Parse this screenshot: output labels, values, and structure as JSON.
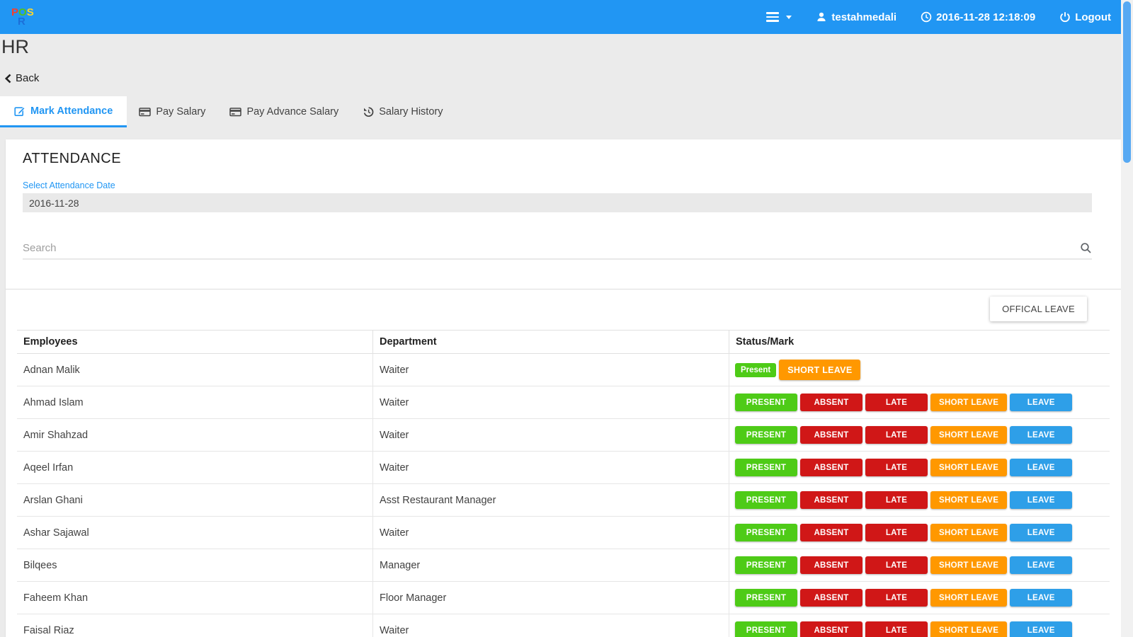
{
  "navbar": {
    "logo": {
      "line1": [
        {
          "ch": "P",
          "color": "#f4402e"
        },
        {
          "ch": "O",
          "color": "#54c21e"
        },
        {
          "ch": "S",
          "color": "#fdd72c"
        }
      ],
      "line2": [
        {
          "ch": "R",
          "color": "#1c6fd9"
        }
      ]
    },
    "user": "testahmedali",
    "datetime": "2016-11-28 12:18:09",
    "logout_label": "Logout"
  },
  "page": {
    "title": "HR",
    "back_label": "Back"
  },
  "tabs": [
    {
      "label": "Mark Attendance",
      "icon": "edit-icon",
      "active": true
    },
    {
      "label": "Pay Salary",
      "icon": "credit-card-icon",
      "active": false
    },
    {
      "label": "Pay Advance Salary",
      "icon": "credit-card-icon",
      "active": false
    },
    {
      "label": "Salary History",
      "icon": "history-icon",
      "active": false
    }
  ],
  "attendance": {
    "heading": "ATTENDANCE",
    "date_label": "Select Attendance Date",
    "date_value": "2016-11-28",
    "search_placeholder": "Search"
  },
  "official_leave_label": "OFFICAL LEAVE",
  "table": {
    "columns": [
      "Employees",
      "Department",
      "Status/Mark"
    ],
    "rows": [
      {
        "name": "Adnan Malik",
        "department": "Waiter",
        "badge": {
          "label": "Present",
          "color": "#4ecb17"
        },
        "buttons": [
          {
            "label": "SHORT LEAVE",
            "color": "#ff9800"
          }
        ]
      },
      {
        "name": "Ahmad Islam",
        "department": "Waiter",
        "buttons": [
          {
            "label": "PRESENT",
            "color": "#4ecb17"
          },
          {
            "label": "ABSENT",
            "color": "#d01717"
          },
          {
            "label": "LATE",
            "color": "#d01717"
          },
          {
            "label": "SHORT LEAVE",
            "color": "#ff9800"
          },
          {
            "label": "LEAVE",
            "color": "#2e9fe8"
          }
        ]
      },
      {
        "name": "Amir Shahzad",
        "department": "Waiter",
        "buttons": [
          {
            "label": "PRESENT",
            "color": "#4ecb17"
          },
          {
            "label": "ABSENT",
            "color": "#d01717"
          },
          {
            "label": "LATE",
            "color": "#d01717"
          },
          {
            "label": "SHORT LEAVE",
            "color": "#ff9800"
          },
          {
            "label": "LEAVE",
            "color": "#2e9fe8"
          }
        ]
      },
      {
        "name": "Aqeel Irfan",
        "department": "Waiter",
        "buttons": [
          {
            "label": "PRESENT",
            "color": "#4ecb17"
          },
          {
            "label": "ABSENT",
            "color": "#d01717"
          },
          {
            "label": "LATE",
            "color": "#d01717"
          },
          {
            "label": "SHORT LEAVE",
            "color": "#ff9800"
          },
          {
            "label": "LEAVE",
            "color": "#2e9fe8"
          }
        ]
      },
      {
        "name": "Arslan Ghani",
        "department": "Asst Restaurant Manager",
        "buttons": [
          {
            "label": "PRESENT",
            "color": "#4ecb17"
          },
          {
            "label": "ABSENT",
            "color": "#d01717"
          },
          {
            "label": "LATE",
            "color": "#d01717"
          },
          {
            "label": "SHORT LEAVE",
            "color": "#ff9800"
          },
          {
            "label": "LEAVE",
            "color": "#2e9fe8"
          }
        ]
      },
      {
        "name": "Ashar Sajawal",
        "department": "Waiter",
        "buttons": [
          {
            "label": "PRESENT",
            "color": "#4ecb17"
          },
          {
            "label": "ABSENT",
            "color": "#d01717"
          },
          {
            "label": "LATE",
            "color": "#d01717"
          },
          {
            "label": "SHORT LEAVE",
            "color": "#ff9800"
          },
          {
            "label": "LEAVE",
            "color": "#2e9fe8"
          }
        ]
      },
      {
        "name": "Bilqees",
        "department": "Manager",
        "buttons": [
          {
            "label": "PRESENT",
            "color": "#4ecb17"
          },
          {
            "label": "ABSENT",
            "color": "#d01717"
          },
          {
            "label": "LATE",
            "color": "#d01717"
          },
          {
            "label": "SHORT LEAVE",
            "color": "#ff9800"
          },
          {
            "label": "LEAVE",
            "color": "#2e9fe8"
          }
        ]
      },
      {
        "name": "Faheem Khan",
        "department": "Floor Manager",
        "buttons": [
          {
            "label": "PRESENT",
            "color": "#4ecb17"
          },
          {
            "label": "ABSENT",
            "color": "#d01717"
          },
          {
            "label": "LATE",
            "color": "#d01717"
          },
          {
            "label": "SHORT LEAVE",
            "color": "#ff9800"
          },
          {
            "label": "LEAVE",
            "color": "#2e9fe8"
          }
        ]
      },
      {
        "name": "Faisal Riaz",
        "department": "Waiter",
        "buttons": [
          {
            "label": "PRESENT",
            "color": "#4ecb17"
          },
          {
            "label": "ABSENT",
            "color": "#d01717"
          },
          {
            "label": "LATE",
            "color": "#d01717"
          },
          {
            "label": "SHORT LEAVE",
            "color": "#ff9800"
          },
          {
            "label": "LEAVE",
            "color": "#2e9fe8"
          }
        ]
      }
    ]
  },
  "colors": {
    "navbar": "#2196f3",
    "accent": "#2196f3",
    "present_green": "#4ecb17",
    "absent_red": "#d01717",
    "short_leave_orange": "#ff9800",
    "leave_blue": "#2e9fe8",
    "scrollbar_thumb": "#57a9f3",
    "page_background": "#ebebeb"
  }
}
